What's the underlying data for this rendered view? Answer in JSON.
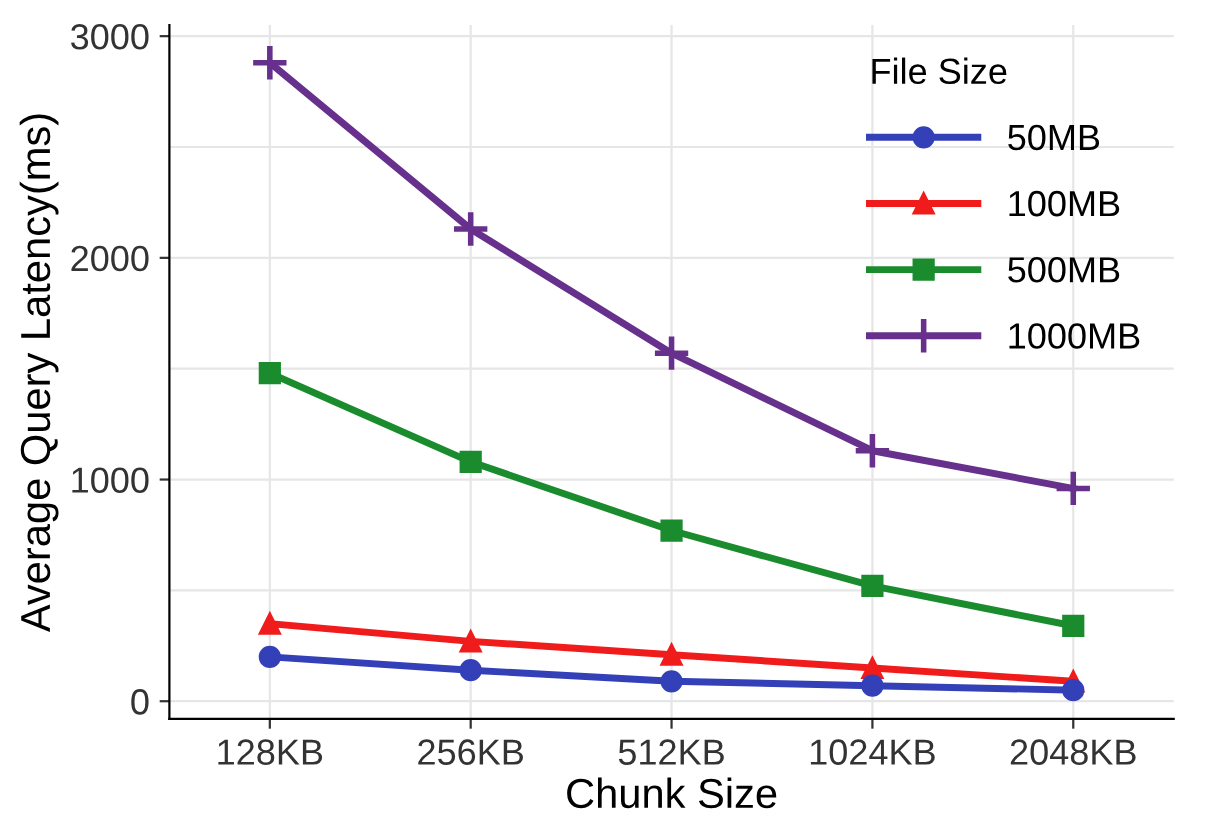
{
  "chart_data": {
    "type": "line",
    "xlabel": "Chunk Size",
    "ylabel": "Average Query Latency(ms)",
    "legend_title": "File Size",
    "categories": [
      "128KB",
      "256KB",
      "512KB",
      "1024KB",
      "2048KB"
    ],
    "series": [
      {
        "name": "50MB",
        "color": "#3340b8",
        "marker": "circle",
        "values": [
          200,
          140,
          90,
          70,
          50
        ]
      },
      {
        "name": "100MB",
        "color": "#f01c1c",
        "marker": "triangle",
        "values": [
          350,
          270,
          210,
          150,
          90
        ]
      },
      {
        "name": "500MB",
        "color": "#1b8c2e",
        "marker": "square",
        "values": [
          1480,
          1080,
          770,
          520,
          340
        ]
      },
      {
        "name": "1000MB",
        "color": "#66308c",
        "marker": "cross",
        "values": [
          2880,
          2130,
          1570,
          1130,
          960
        ]
      }
    ],
    "ylim": [
      -80,
      3050
    ],
    "yticks": [
      0,
      1000,
      2000,
      3000
    ],
    "grid": true,
    "legend": "top right",
    "line_style": "solid"
  }
}
